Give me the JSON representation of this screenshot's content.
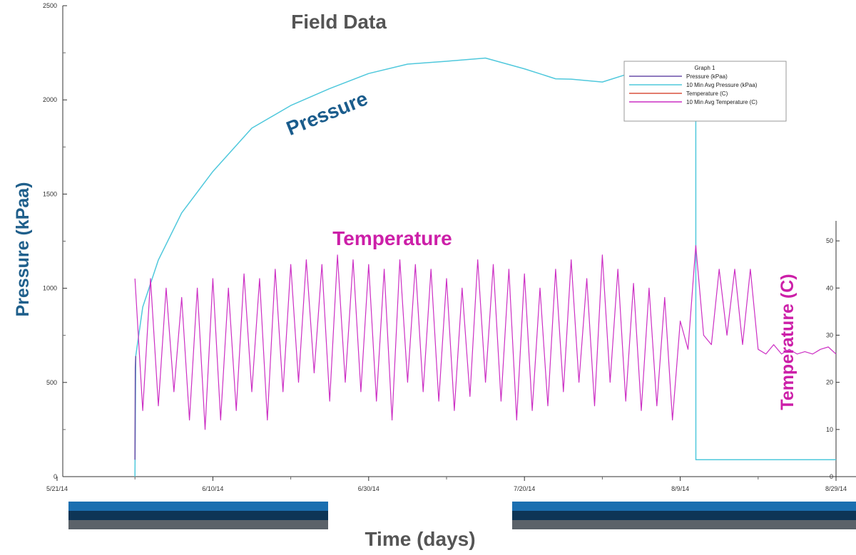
{
  "chart_data": {
    "type": "line",
    "title": "Field Data",
    "xlabel": "Time (days)",
    "ylabel": "Pressure (kPaa)",
    "y2label": "Temperature (C)",
    "annotations": {
      "pressure": "Pressure",
      "temperature": "Temperature"
    },
    "legend": {
      "title": "Graph 1",
      "placement": "top-right",
      "entries": [
        {
          "name": "Pressure (kPaa)",
          "color": "#6a4fa8"
        },
        {
          "name": "10 Min Avg Pressure (kPaa)",
          "color": "#4fc8dc"
        },
        {
          "name": "Temperature (C)",
          "color": "#d9503f"
        },
        {
          "name": "10 Min Avg Temperature (C)",
          "color": "#cc2fc4"
        }
      ]
    },
    "x_axis": {
      "type": "date",
      "ticks": [
        "5/21/14",
        "6/10/14",
        "6/30/14",
        "7/20/14",
        "8/9/14",
        "8/29/14"
      ],
      "range_days": [
        0,
        100
      ]
    },
    "y_axis": {
      "range": [
        0,
        2500
      ],
      "ticks": [
        0,
        500,
        1000,
        1500,
        2000,
        2500
      ]
    },
    "y2_axis": {
      "range": [
        0,
        55
      ],
      "ticks": [
        0,
        10,
        20,
        30,
        40,
        50
      ]
    },
    "series": [
      {
        "name": "10 Min Avg Pressure (kPaa)",
        "color": "#4fc8dc",
        "axis": "left",
        "x_days": [
          10,
          10.1,
          11,
          13,
          16,
          20,
          25,
          30,
          35,
          40,
          45,
          50,
          55,
          60,
          63,
          64,
          66,
          70,
          75,
          78,
          80,
          81,
          82,
          82.001,
          83,
          90,
          100
        ],
        "y": [
          0,
          640,
          900,
          1150,
          1400,
          1620,
          1850,
          1970,
          2060,
          2140,
          2190,
          2205,
          2222,
          2165,
          2125,
          2112,
          2110,
          2095,
          2160,
          2150,
          2145,
          2143,
          2142,
          90,
          90,
          90,
          90
        ]
      },
      {
        "name": "Pressure (kPaa)",
        "color": "#6a4fa8",
        "axis": "left",
        "x_days": [
          10,
          10.05,
          10.1
        ],
        "y": [
          90,
          580,
          640
        ]
      },
      {
        "name": "10 Min Avg Temperature (C)",
        "color": "#cc2fc4",
        "axis": "right",
        "x_days": [
          10,
          11,
          12,
          13,
          14,
          15,
          16,
          17,
          18,
          19,
          20,
          21,
          22,
          23,
          24,
          25,
          26,
          27,
          28,
          29,
          30,
          31,
          32,
          33,
          34,
          35,
          36,
          37,
          38,
          39,
          40,
          41,
          42,
          43,
          44,
          45,
          46,
          47,
          48,
          49,
          50,
          51,
          52,
          53,
          54,
          55,
          56,
          57,
          58,
          59,
          60,
          61,
          62,
          63,
          64,
          65,
          66,
          67,
          68,
          69,
          70,
          71,
          72,
          73,
          74,
          75,
          76,
          77,
          78,
          79,
          80,
          81,
          82,
          83,
          84,
          85,
          86,
          87,
          88,
          89,
          90,
          91,
          92,
          93,
          94,
          95,
          96,
          97,
          98,
          99,
          100
        ],
        "y": [
          42,
          14,
          42,
          15,
          40,
          18,
          38,
          12,
          40,
          10,
          42,
          12,
          40,
          14,
          43,
          18,
          42,
          12,
          44,
          18,
          45,
          20,
          46,
          22,
          45,
          16,
          47,
          20,
          46,
          18,
          45,
          16,
          44,
          12,
          46,
          20,
          45,
          18,
          44,
          16,
          42,
          14,
          40,
          17,
          46,
          20,
          45,
          16,
          44,
          12,
          43,
          14,
          40,
          15,
          44,
          18,
          46,
          20,
          42,
          15,
          47,
          20,
          44,
          16,
          41,
          14,
          40,
          15,
          38,
          12,
          33,
          27,
          49,
          30,
          28,
          44,
          30,
          44,
          28,
          44,
          27,
          26,
          28,
          26,
          27,
          26,
          26.5,
          26,
          27,
          27.5,
          26
        ]
      }
    ]
  }
}
